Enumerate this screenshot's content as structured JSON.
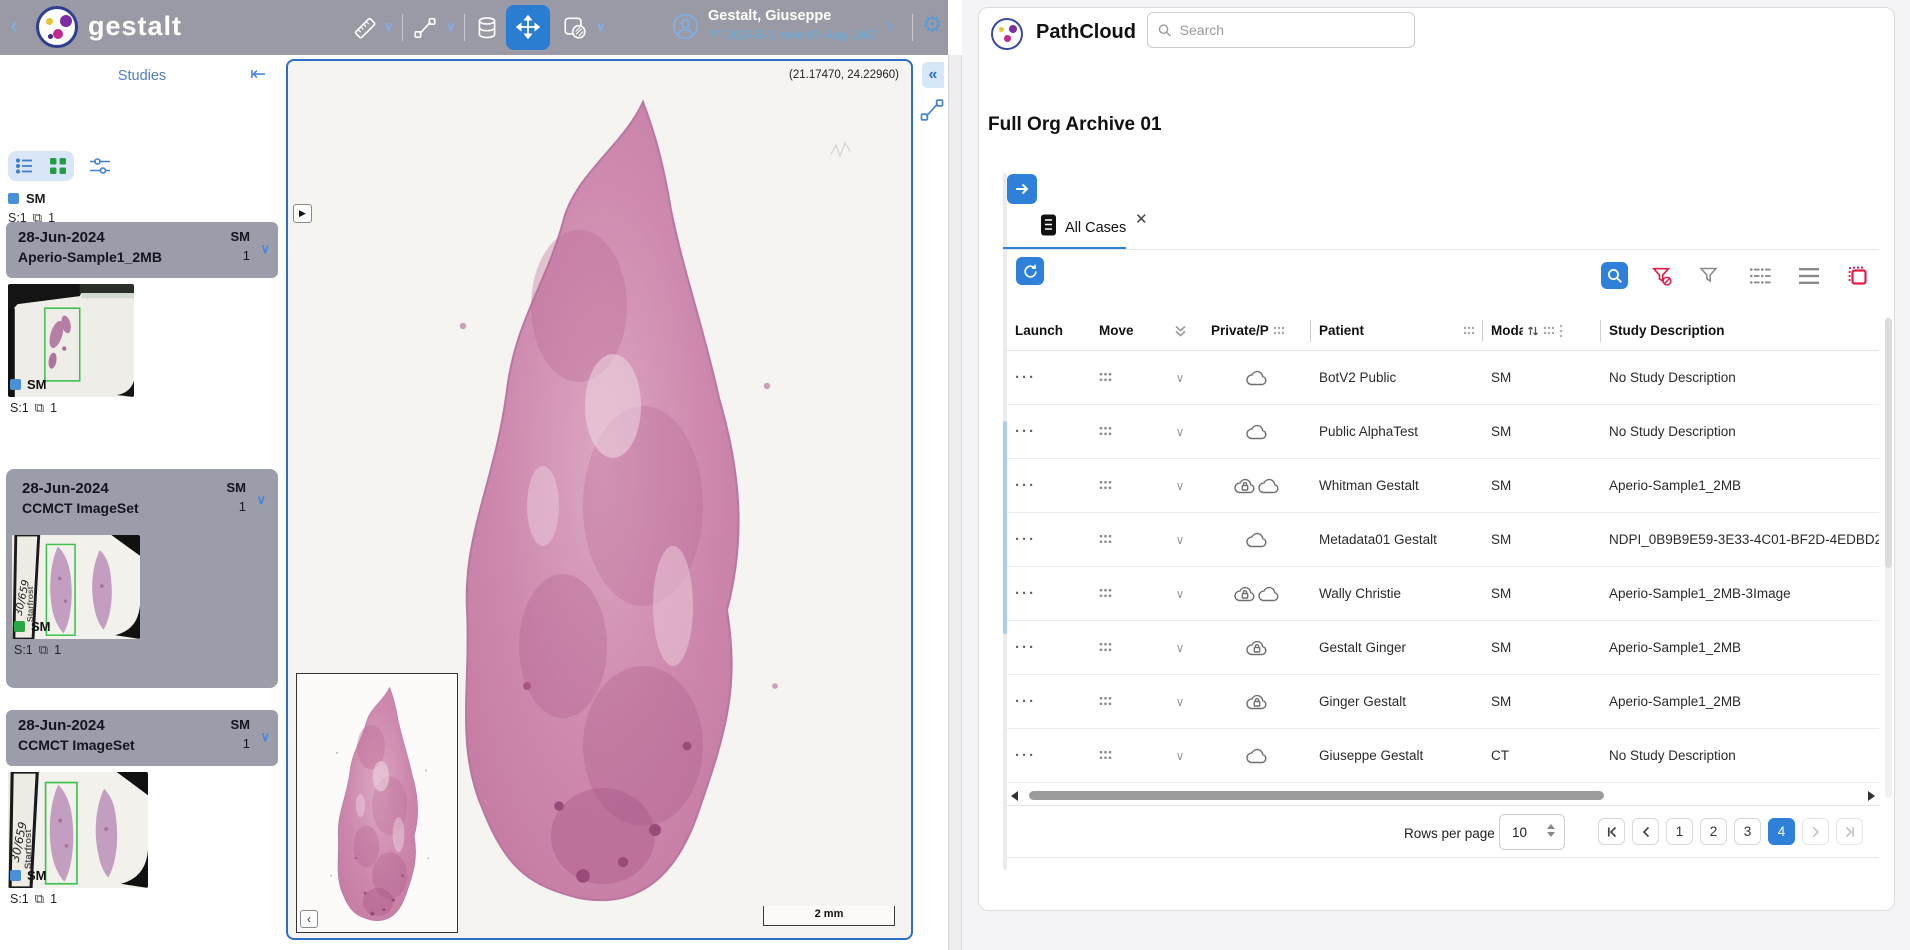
{
  "app": {
    "topbar": {
      "logo": "gestalt",
      "user_name": "Gestalt, Giuseppe",
      "user_details": "PT-2024-5-6  male  07-Aug-1963"
    },
    "sidebar": {
      "title": "Studies",
      "summary_modality": "SM",
      "summary_series": "S:1",
      "summary_copies": "1",
      "studies": [
        {
          "date": "28-Jun-2024",
          "description": "Aperio-Sample1_2MB",
          "modality": "SM",
          "count": "1",
          "series": "S:1",
          "copies": "1",
          "selected": false,
          "variant": "aperio",
          "marker": "#4a90d9"
        },
        {
          "date": "28-Jun-2024",
          "description": "CCMCT ImageSet",
          "modality": "SM",
          "count": "1",
          "series": "S:1",
          "copies": "1",
          "selected": true,
          "variant": "starfrost",
          "marker": "#28a745"
        },
        {
          "date": "28-Jun-2024",
          "description": "CCMCT ImageSet",
          "modality": "SM",
          "count": "1",
          "series": "S:1",
          "copies": "1",
          "selected": false,
          "variant": "starfrost",
          "marker": "#4a90d9"
        }
      ]
    },
    "viewer": {
      "coordinates": "(21.17470, 24.22960)",
      "scale_label": "2 mm"
    }
  },
  "pathcloud": {
    "brand": "PathCloud",
    "search_placeholder": "Search",
    "archive_title": "Full Org Archive 01",
    "tab_label": "All Cases",
    "table": {
      "columns": [
        "Launch",
        "Move",
        "Private/P",
        "Patient",
        "Modality",
        "Study Description"
      ],
      "rows": [
        {
          "patient": "BotV2 Public",
          "modality": "SM",
          "description": "No Study Description",
          "clouds": [
            "public"
          ]
        },
        {
          "patient": "Public AlphaTest",
          "modality": "SM",
          "description": "No Study Description",
          "clouds": [
            "public"
          ]
        },
        {
          "patient": "Whitman Gestalt",
          "modality": "SM",
          "description": "Aperio-Sample1_2MB",
          "clouds": [
            "private",
            "public"
          ]
        },
        {
          "patient": "Metadata01 Gestalt",
          "modality": "SM",
          "description": "NDPI_0B9B9E59-3E33-4C01-BF2D-4EDBD2",
          "clouds": [
            "public"
          ]
        },
        {
          "patient": "Wally Christie",
          "modality": "SM",
          "description": "Aperio-Sample1_2MB-3Image",
          "clouds": [
            "private",
            "public"
          ]
        },
        {
          "patient": "Gestalt Ginger",
          "modality": "SM",
          "description": "Aperio-Sample1_2MB",
          "clouds": [
            "private"
          ]
        },
        {
          "patient": "Ginger Gestalt",
          "modality": "SM",
          "description": "Aperio-Sample1_2MB",
          "clouds": [
            "private"
          ]
        },
        {
          "patient": "Giuseppe Gestalt",
          "modality": "CT",
          "description": "No Study Description",
          "clouds": [
            "public"
          ]
        }
      ]
    },
    "pagination": {
      "rows_per_page_label": "Rows per page",
      "rows_per_page": "10",
      "pages": [
        "1",
        "2",
        "3",
        "4"
      ],
      "active_page": "4"
    }
  },
  "icons": {
    "back": "‹",
    "forward": "›",
    "collapse_left": "«",
    "collapse_sidebar": "⇤",
    "chevron_down": "∨",
    "copy": "⧉",
    "gear": "⚙",
    "play": "▶",
    "close": "✕",
    "more": "···",
    "mini_left": "‹"
  },
  "colors": {
    "accent": "#2f80d8",
    "danger": "#e11d48",
    "success": "#259b48",
    "topbar_bg": "#999aa6",
    "card_gray": "#9c9dab"
  }
}
